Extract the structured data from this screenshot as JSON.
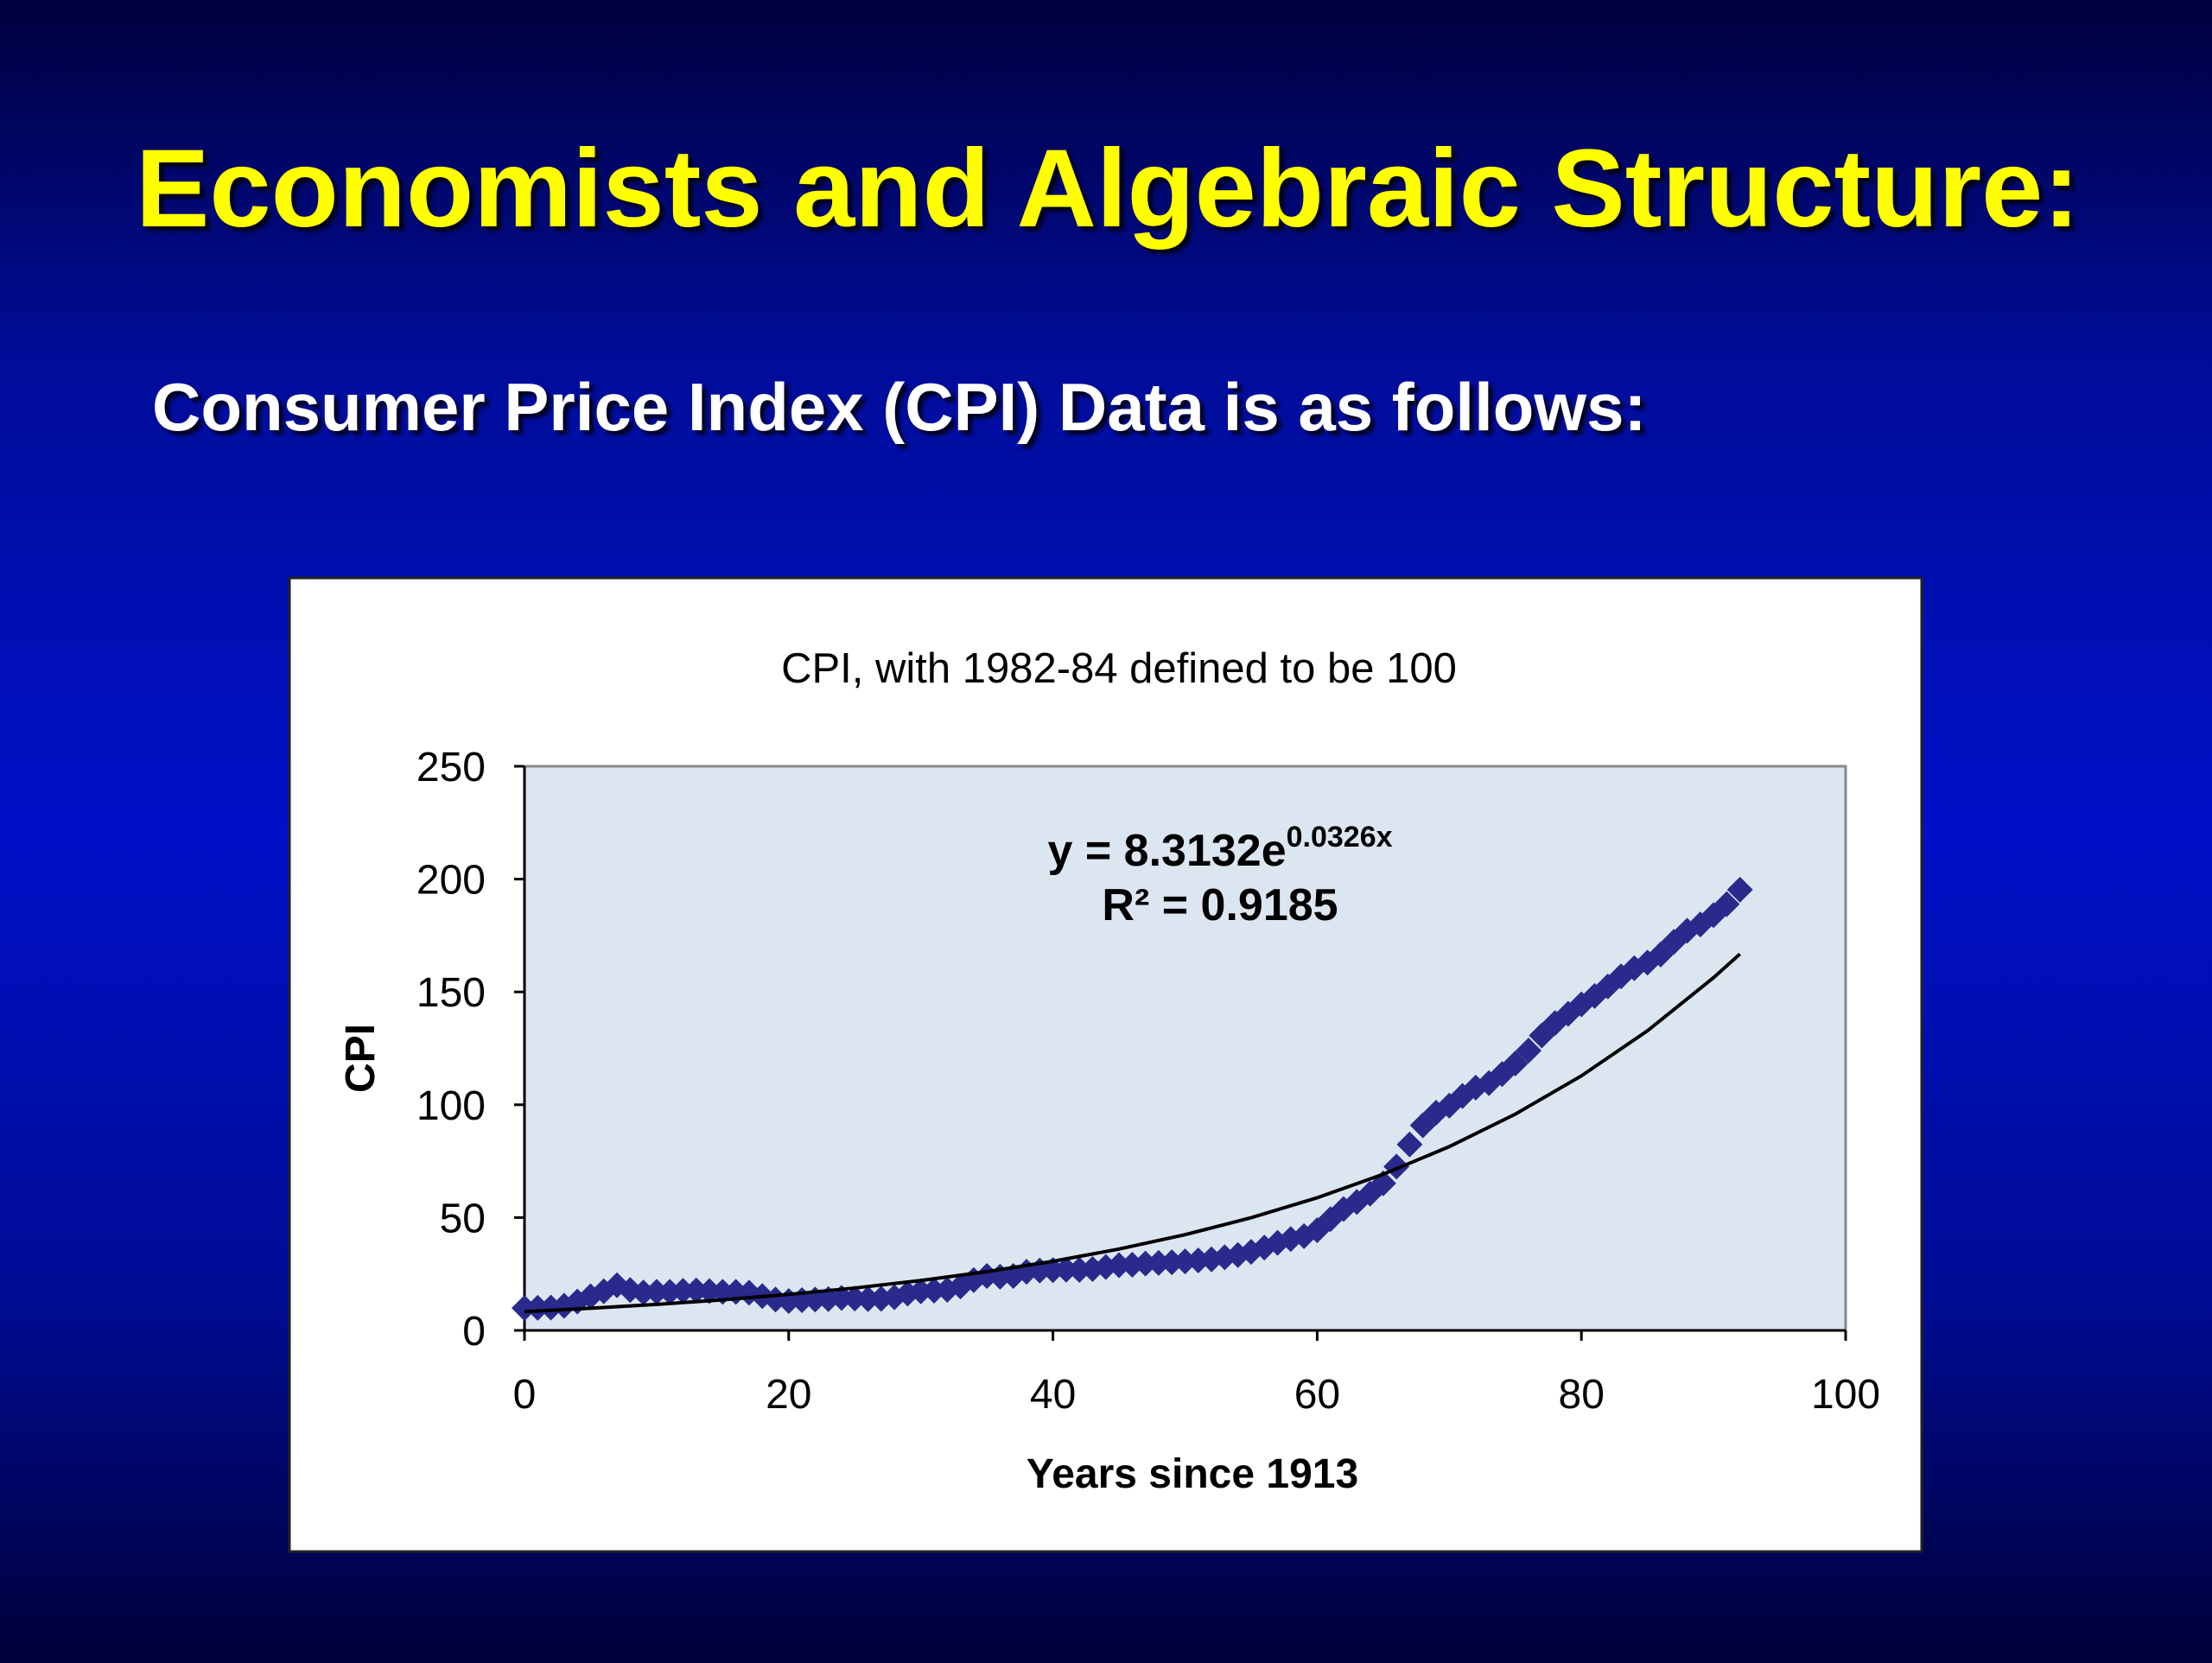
{
  "slide": {
    "title": "Economists and Algebraic Structure:",
    "subtitle": "Consumer Price Index (CPI) Data is as follows:"
  },
  "chart_data": {
    "type": "scatter",
    "title": "CPI, with 1982-84 defined to be 100",
    "x_label": "Years since 1913",
    "y_label": "CPI",
    "xlim": [
      0,
      100
    ],
    "xticks": [
      0,
      20,
      40,
      60,
      80,
      100
    ],
    "ylim": [
      0,
      250
    ],
    "yticks": [
      0,
      50,
      100,
      150,
      200,
      250
    ],
    "plot_background": "#dce6f1",
    "annotations": {
      "equation": "y = 8.3132e",
      "exponent": "0.0326x",
      "r_squared": "R² = 0.9185"
    },
    "series": [
      {
        "color": "#2a2a8c",
        "marker": "diamond",
        "x": [
          0,
          1,
          2,
          3,
          4,
          5,
          6,
          7,
          8,
          9,
          10,
          11,
          12,
          13,
          14,
          15,
          16,
          17,
          18,
          19,
          20,
          21,
          22,
          23,
          24,
          25,
          26,
          27,
          28,
          29,
          30,
          31,
          32,
          33,
          34,
          35,
          36,
          37,
          38,
          39,
          40,
          41,
          42,
          43,
          44,
          45,
          46,
          47,
          48,
          49,
          50,
          51,
          52,
          53,
          54,
          55,
          56,
          57,
          58,
          59,
          60,
          61,
          62,
          63,
          64,
          65,
          66,
          67,
          68,
          69,
          70,
          71,
          72,
          73,
          74,
          75,
          76,
          77,
          78,
          79,
          80,
          81,
          82,
          83,
          84,
          85,
          86,
          87,
          88,
          89,
          90,
          91,
          92
        ],
        "values": [
          9.9,
          10.0,
          10.1,
          10.9,
          12.8,
          15.1,
          17.3,
          20.0,
          17.9,
          16.8,
          17.1,
          17.1,
          17.5,
          17.7,
          17.4,
          17.1,
          17.1,
          16.7,
          15.2,
          13.7,
          13.0,
          13.4,
          13.7,
          13.9,
          14.4,
          14.1,
          13.9,
          14.0,
          14.7,
          16.3,
          17.3,
          17.6,
          18.0,
          19.5,
          22.3,
          24.1,
          23.8,
          24.1,
          26.0,
          26.5,
          26.7,
          26.9,
          26.8,
          27.2,
          28.1,
          28.9,
          29.1,
          29.6,
          29.9,
          30.2,
          30.6,
          31.0,
          31.5,
          32.4,
          33.4,
          34.8,
          36.7,
          38.8,
          40.5,
          41.8,
          44.4,
          49.3,
          53.8,
          56.9,
          60.6,
          65.2,
          72.6,
          82.4,
          90.9,
          96.5,
          99.6,
          103.9,
          107.6,
          109.6,
          113.6,
          118.3,
          124.0,
          130.7,
          136.2,
          140.3,
          144.5,
          148.2,
          152.4,
          156.9,
          160.5,
          163.0,
          166.6,
          172.2,
          177.1,
          179.9,
          184.0,
          188.9,
          195.3
        ]
      },
      {
        "color": "#000000",
        "marker": "line",
        "x": [
          0,
          5,
          10,
          15,
          20,
          25,
          30,
          35,
          40,
          45,
          50,
          55,
          60,
          65,
          70,
          75,
          80,
          85,
          90,
          92
        ],
        "values": [
          8.31,
          9.79,
          11.52,
          13.56,
          15.96,
          18.78,
          22.11,
          26.02,
          30.63,
          36.05,
          42.43,
          49.94,
          58.78,
          69.19,
          81.44,
          95.86,
          112.8,
          132.8,
          156.3,
          166.8
        ]
      }
    ]
  }
}
